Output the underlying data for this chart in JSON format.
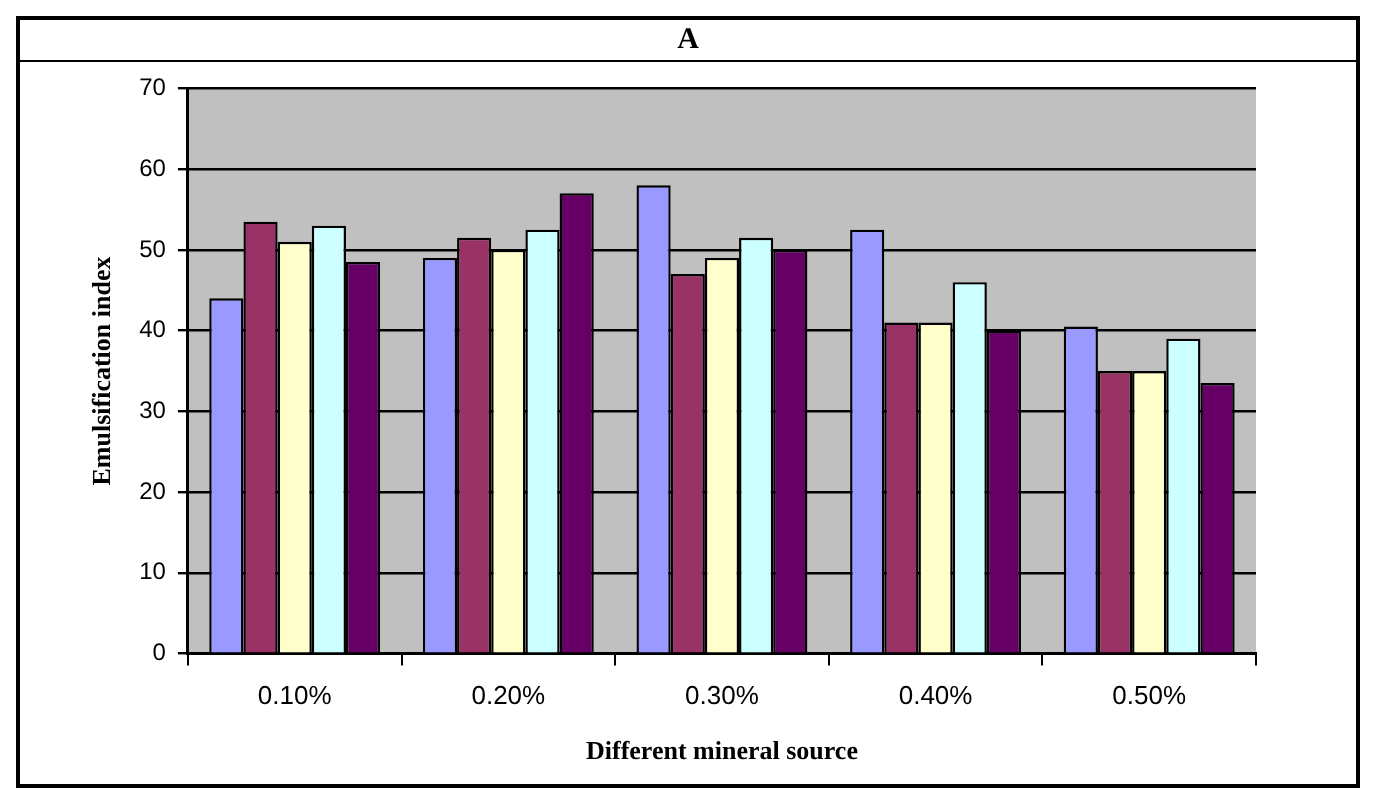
{
  "chart_data": {
    "type": "bar",
    "title": "A",
    "xlabel": "Different mineral source",
    "ylabel": "Emulsification index",
    "categories": [
      "0.10%",
      "0.20%",
      "0.30%",
      "0.40%",
      "0.50%"
    ],
    "series": [
      {
        "color": "#9999ff",
        "values": [
          44,
          49,
          58,
          52.5,
          40.5
        ]
      },
      {
        "color": "#993366",
        "values": [
          53.5,
          51.5,
          47,
          41,
          35
        ]
      },
      {
        "color": "#ffffcc",
        "values": [
          51,
          50,
          49,
          41,
          35
        ]
      },
      {
        "color": "#ccffff",
        "values": [
          53,
          52.5,
          51.5,
          46,
          39
        ]
      },
      {
        "color": "#660066",
        "values": [
          48.5,
          57,
          50,
          40,
          33.5
        ]
      }
    ],
    "ylim": [
      0,
      70
    ],
    "yticks": [
      0,
      10,
      20,
      30,
      40,
      50,
      60,
      70
    ],
    "grid": "y",
    "legend": false
  }
}
